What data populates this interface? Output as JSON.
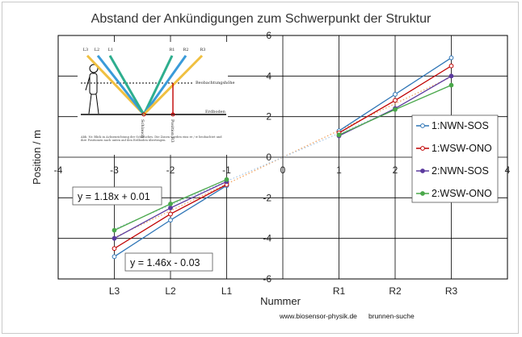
{
  "colors": {
    "series1": "#2e75b6",
    "series2": "#c00000",
    "series3": "#5b3a9e",
    "series4": "#4aa84a",
    "trend": "#f4a460"
  },
  "chart_data": {
    "type": "scatter",
    "title": "Abstand der Ankündigungen zum Schwerpunkt der Struktur",
    "xlabel": "Nummer",
    "ylabel": "Position / m",
    "xlim": [
      -4,
      4
    ],
    "ylim": [
      -6,
      6
    ],
    "x_ticks": [
      "-4",
      "-3",
      "-2",
      "-1",
      "0",
      "1",
      "2",
      "3",
      "4"
    ],
    "y_ticks": [
      "6",
      "4",
      "2",
      "0",
      "-2",
      "-4",
      "-6"
    ],
    "category_labels": [
      "L3",
      "L2",
      "L1",
      "R1",
      "R2",
      "R3"
    ],
    "grid": true,
    "legend_position": "right",
    "x": [
      -3,
      -2,
      -1,
      1,
      2,
      3
    ],
    "series": [
      {
        "name": "1:NWN-SOS",
        "color": "#2e75b6",
        "values": [
          -4.9,
          -3.1,
          -1.4,
          1.3,
          3.1,
          4.9
        ]
      },
      {
        "name": "1:WSW-ONO",
        "color": "#c00000",
        "values": [
          -4.5,
          -2.8,
          -1.35,
          1.2,
          2.8,
          4.5
        ]
      },
      {
        "name": "2:NWN-SOS",
        "color": "#5b3a9e",
        "values": [
          -4.0,
          -2.5,
          -1.2,
          1.05,
          2.4,
          4.0
        ]
      },
      {
        "name": "2:WSW-ONO",
        "color": "#4aa84a",
        "values": [
          -3.6,
          -2.3,
          -1.1,
          1.1,
          2.35,
          3.55
        ]
      }
    ],
    "trendlines": [
      {
        "slope": 1.18,
        "intercept": 0.01,
        "equation": "y = 1.18x + 0.01"
      },
      {
        "slope": 1.46,
        "intercept": -0.03,
        "equation": "y = 1.46x - 0.03"
      }
    ]
  },
  "inset": {
    "labels": [
      "L3",
      "L2",
      "L1",
      "R1",
      "R2",
      "R3"
    ],
    "observation_label": "Beobachtungshöhe",
    "ground_label": "Erdboden",
    "shaft_label": "Schlauch",
    "position_label": "Position R3",
    "caption": "Abb. Nr. Blick in Achsenrichtung der Schlauches. Die Zonen werden eins re / w beobachtet und ihre Positionen nach unten auf den Erdboden übertragen."
  },
  "footer": {
    "website": "www.biosensor-physik.de",
    "topic": "brunnen-suche"
  }
}
